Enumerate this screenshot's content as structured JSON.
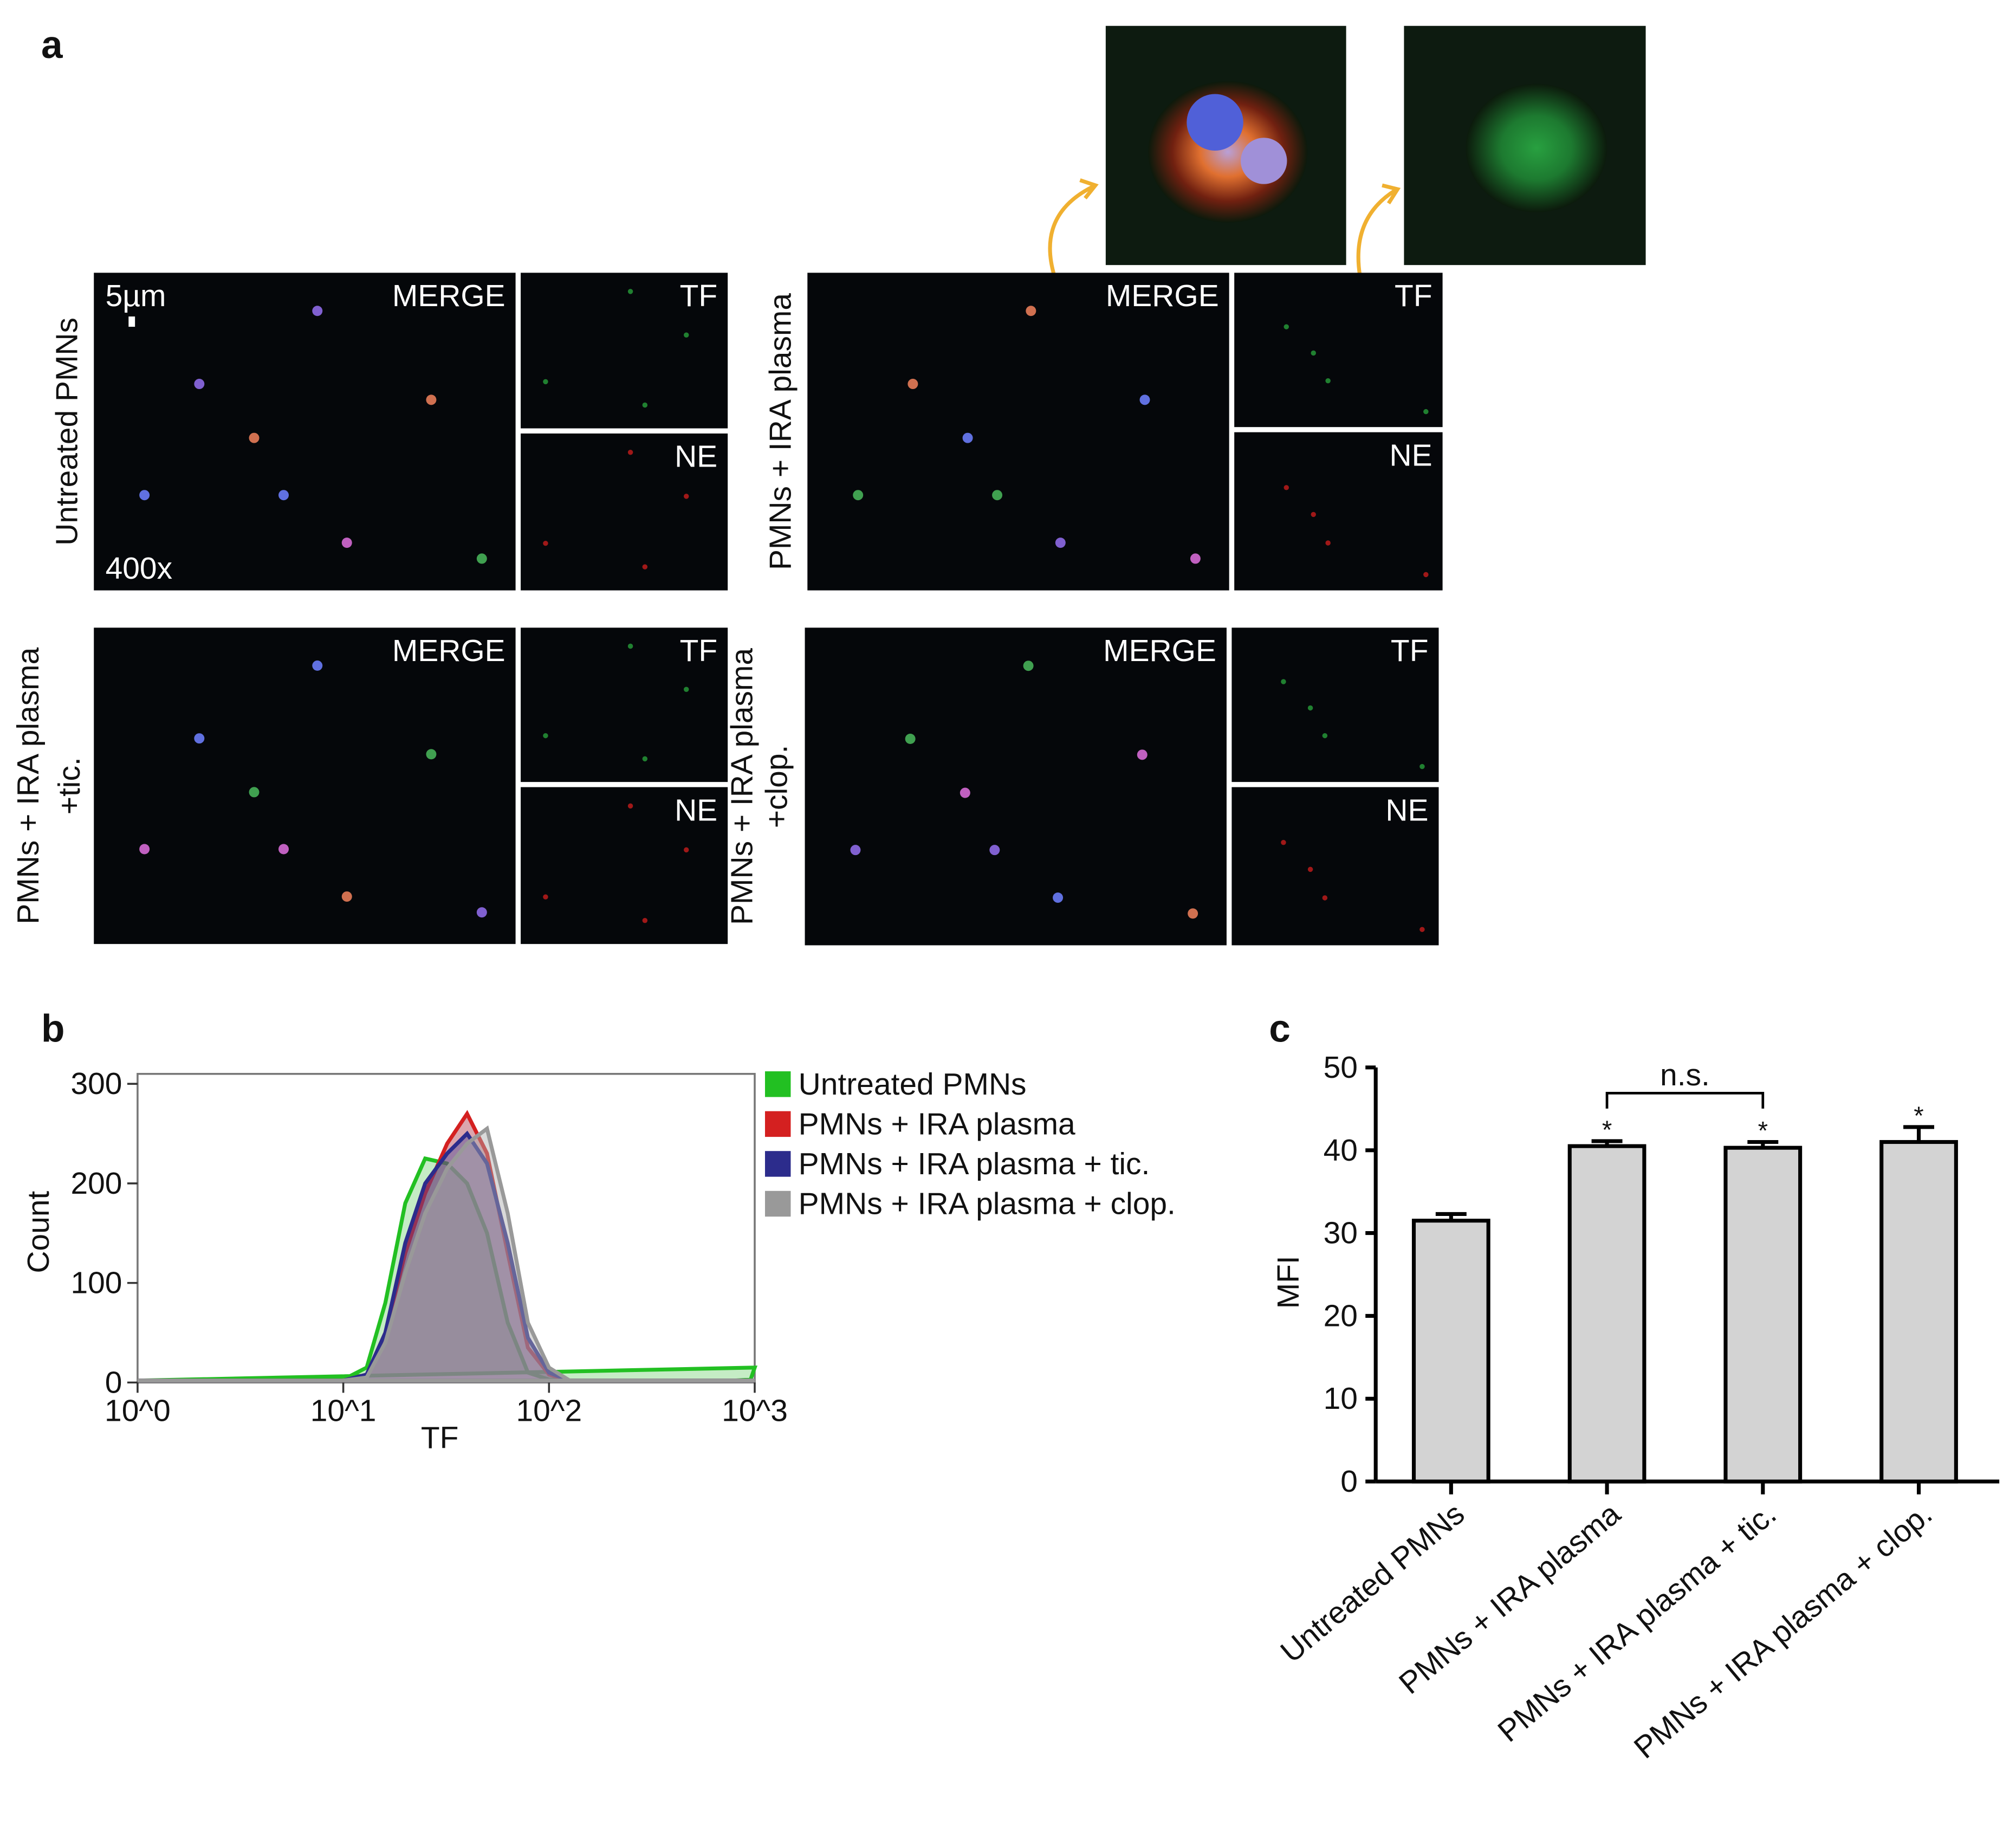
{
  "panel_a": {
    "label": "a",
    "scale_bar": "5µm",
    "magnification": "400x",
    "panels": [
      {
        "title": [
          "Untreated PMNs"
        ],
        "merge": "MERGE",
        "tf": "TF",
        "ne": "NE"
      },
      {
        "title": [
          "PMNs + IRA plasma"
        ],
        "merge": "MERGE",
        "tf": "TF",
        "ne": "NE"
      },
      {
        "title": [
          "PMNs + IRA plasma",
          "+tic."
        ],
        "merge": "MERGE",
        "tf": "TF",
        "ne": "NE"
      },
      {
        "title": [
          "PMNs + IRA plasma",
          "+clop."
        ],
        "merge": "MERGE",
        "tf": "TF",
        "ne": "NE"
      }
    ]
  },
  "chart_data": [
    {
      "type": "area",
      "panel_label": "b",
      "x_label": "TF",
      "y_label": "Count",
      "log_x": true,
      "x": [
        1,
        3,
        8,
        10,
        13,
        16,
        20,
        25,
        32,
        40,
        50,
        63,
        79,
        100,
        126,
        316,
        794,
        955,
        1000
      ],
      "series": [
        {
          "name": "Untreated PMNs",
          "color": "#22c022",
          "fill": "#7ed47e",
          "values": [
            2,
            2,
            2,
            3,
            15,
            80,
            180,
            225,
            220,
            200,
            150,
            60,
            10,
            3,
            2,
            2,
            2,
            3,
            15
          ]
        },
        {
          "name": "PMNs + IRA plasma",
          "color": "#d42020",
          "fill": "#b03a4a",
          "values": [
            2,
            2,
            2,
            2,
            8,
            50,
            130,
            190,
            240,
            270,
            230,
            130,
            35,
            8,
            2,
            2,
            2,
            2,
            2
          ]
        },
        {
          "name": "PMNs + IRA plasma + tic.",
          "color": "#2c2c8c",
          "fill": "#4a4a9a",
          "values": [
            2,
            2,
            2,
            2,
            8,
            50,
            140,
            200,
            230,
            250,
            220,
            140,
            45,
            10,
            2,
            2,
            2,
            2,
            2
          ]
        },
        {
          "name": "PMNs + IRA plasma + clop.",
          "color": "#999999",
          "fill": "#aaaaaa",
          "values": [
            2,
            2,
            2,
            2,
            5,
            40,
            110,
            170,
            215,
            240,
            255,
            170,
            60,
            15,
            2,
            2,
            2,
            2,
            2
          ]
        }
      ],
      "xlim": [
        1,
        1000
      ],
      "xticks": [
        {
          "value": 1,
          "label": "10^0"
        },
        {
          "value": 10,
          "label": "10^1"
        },
        {
          "value": 100,
          "label": "10^2"
        },
        {
          "value": 1000,
          "label": "10^3"
        }
      ],
      "ylim": [
        0,
        310
      ],
      "yticks": [
        0,
        100,
        200,
        300
      ]
    },
    {
      "type": "bar",
      "panel_label": "c",
      "y_label": "MFI",
      "categories": [
        "Untreated PMNs",
        "PMNs + IRA plasma",
        "PMNs + IRA plasma + tic.",
        "PMNs + IRA plasma + clop."
      ],
      "values": [
        31.5,
        40.5,
        40.3,
        41
      ],
      "errors": [
        0.8,
        0.6,
        0.7,
        1.8
      ],
      "color": "#d3d3d3",
      "significance_labels": [
        null,
        "*",
        "*",
        "*"
      ],
      "bracket_label": "n.s.",
      "ylim": [
        0,
        50
      ],
      "yticks": [
        0,
        10,
        20,
        30,
        40,
        50
      ]
    }
  ]
}
